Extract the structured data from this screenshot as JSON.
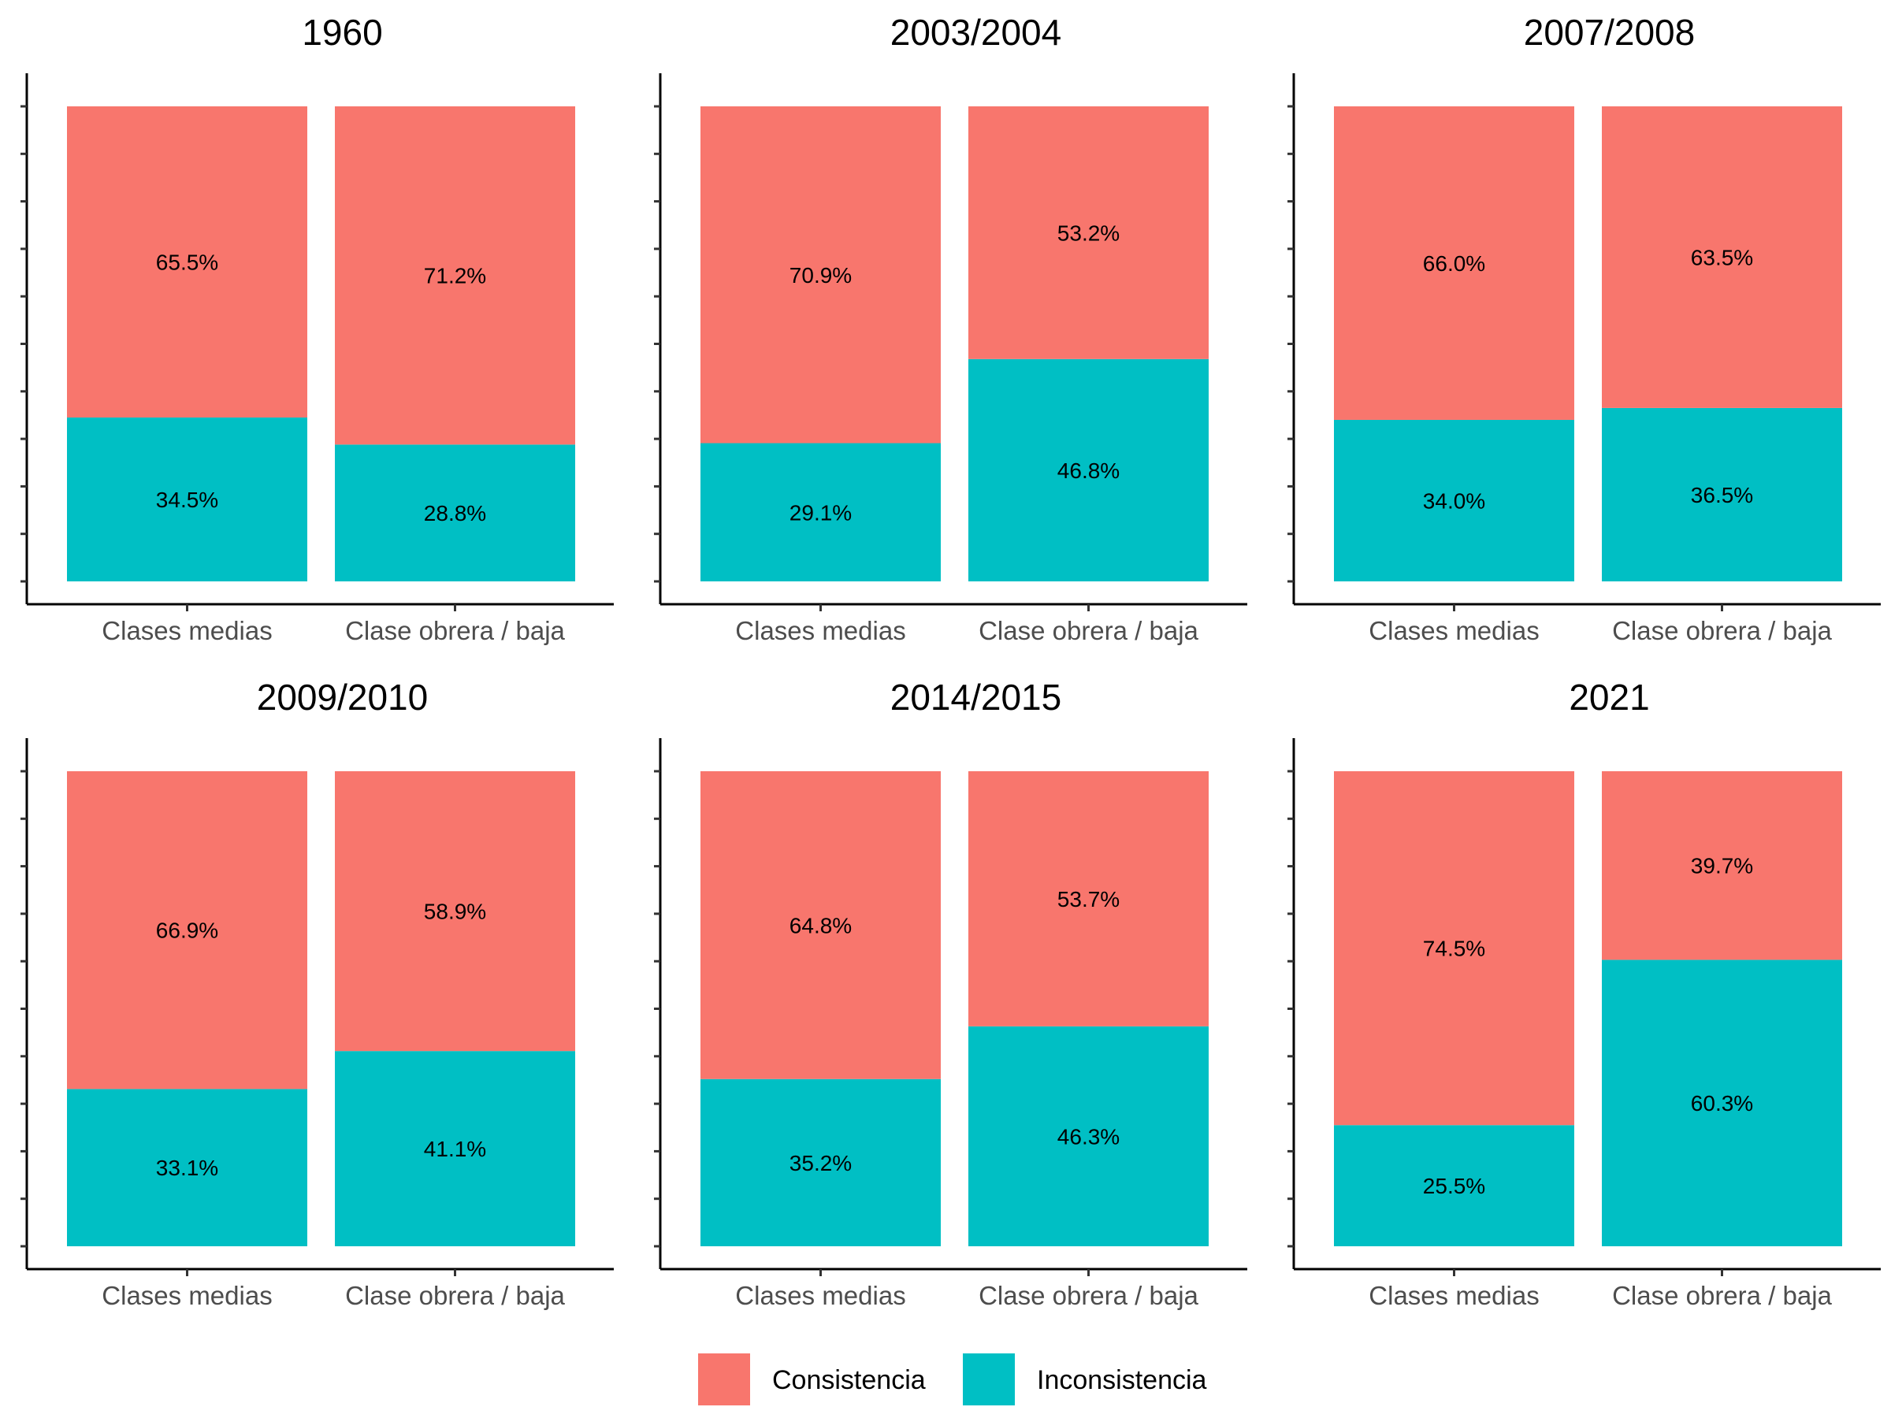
{
  "chart_data": {
    "type": "bar",
    "stacked": true,
    "normalized": true,
    "categories": [
      "Clases medias",
      "Clase obrera / baja"
    ],
    "series_names": [
      "Consistencia",
      "Inconsistencia"
    ],
    "colors": {
      "Consistencia": "#F8766D",
      "Inconsistencia": "#00BFC4"
    },
    "ylim": [
      0,
      1
    ],
    "grid": false,
    "legend_position": "bottom",
    "panels": [
      {
        "title": "1960",
        "series": [
          {
            "name": "Consistencia",
            "values": [
              0.655,
              0.712
            ],
            "labels": [
              "65.5%",
              "71.2%"
            ]
          },
          {
            "name": "Inconsistencia",
            "values": [
              0.345,
              0.288
            ],
            "labels": [
              "34.5%",
              "28.8%"
            ]
          }
        ]
      },
      {
        "title": "2003/2004",
        "series": [
          {
            "name": "Consistencia",
            "values": [
              0.709,
              0.532
            ],
            "labels": [
              "70.9%",
              "53.2%"
            ]
          },
          {
            "name": "Inconsistencia",
            "values": [
              0.291,
              0.468
            ],
            "labels": [
              "29.1%",
              "46.8%"
            ]
          }
        ]
      },
      {
        "title": "2007/2008",
        "series": [
          {
            "name": "Consistencia",
            "values": [
              0.66,
              0.635
            ],
            "labels": [
              "66.0%",
              "63.5%"
            ]
          },
          {
            "name": "Inconsistencia",
            "values": [
              0.34,
              0.365
            ],
            "labels": [
              "34.0%",
              "36.5%"
            ]
          }
        ]
      },
      {
        "title": "2009/2010",
        "series": [
          {
            "name": "Consistencia",
            "values": [
              0.669,
              0.589
            ],
            "labels": [
              "66.9%",
              "58.9%"
            ]
          },
          {
            "name": "Inconsistencia",
            "values": [
              0.331,
              0.411
            ],
            "labels": [
              "33.1%",
              "41.1%"
            ]
          }
        ]
      },
      {
        "title": "2014/2015",
        "series": [
          {
            "name": "Consistencia",
            "values": [
              0.648,
              0.537
            ],
            "labels": [
              "64.8%",
              "53.7%"
            ]
          },
          {
            "name": "Inconsistencia",
            "values": [
              0.352,
              0.463
            ],
            "labels": [
              "35.2%",
              "46.3%"
            ]
          }
        ]
      },
      {
        "title": "2021",
        "series": [
          {
            "name": "Consistencia",
            "values": [
              0.745,
              0.397
            ],
            "labels": [
              "74.5%",
              "39.7%"
            ]
          },
          {
            "name": "Inconsistencia",
            "values": [
              0.255,
              0.603
            ],
            "labels": [
              "25.5%",
              "60.3%"
            ]
          }
        ]
      }
    ],
    "legend": [
      {
        "name": "Consistencia",
        "color": "#F8766D"
      },
      {
        "name": "Inconsistencia",
        "color": "#00BFC4"
      }
    ]
  }
}
